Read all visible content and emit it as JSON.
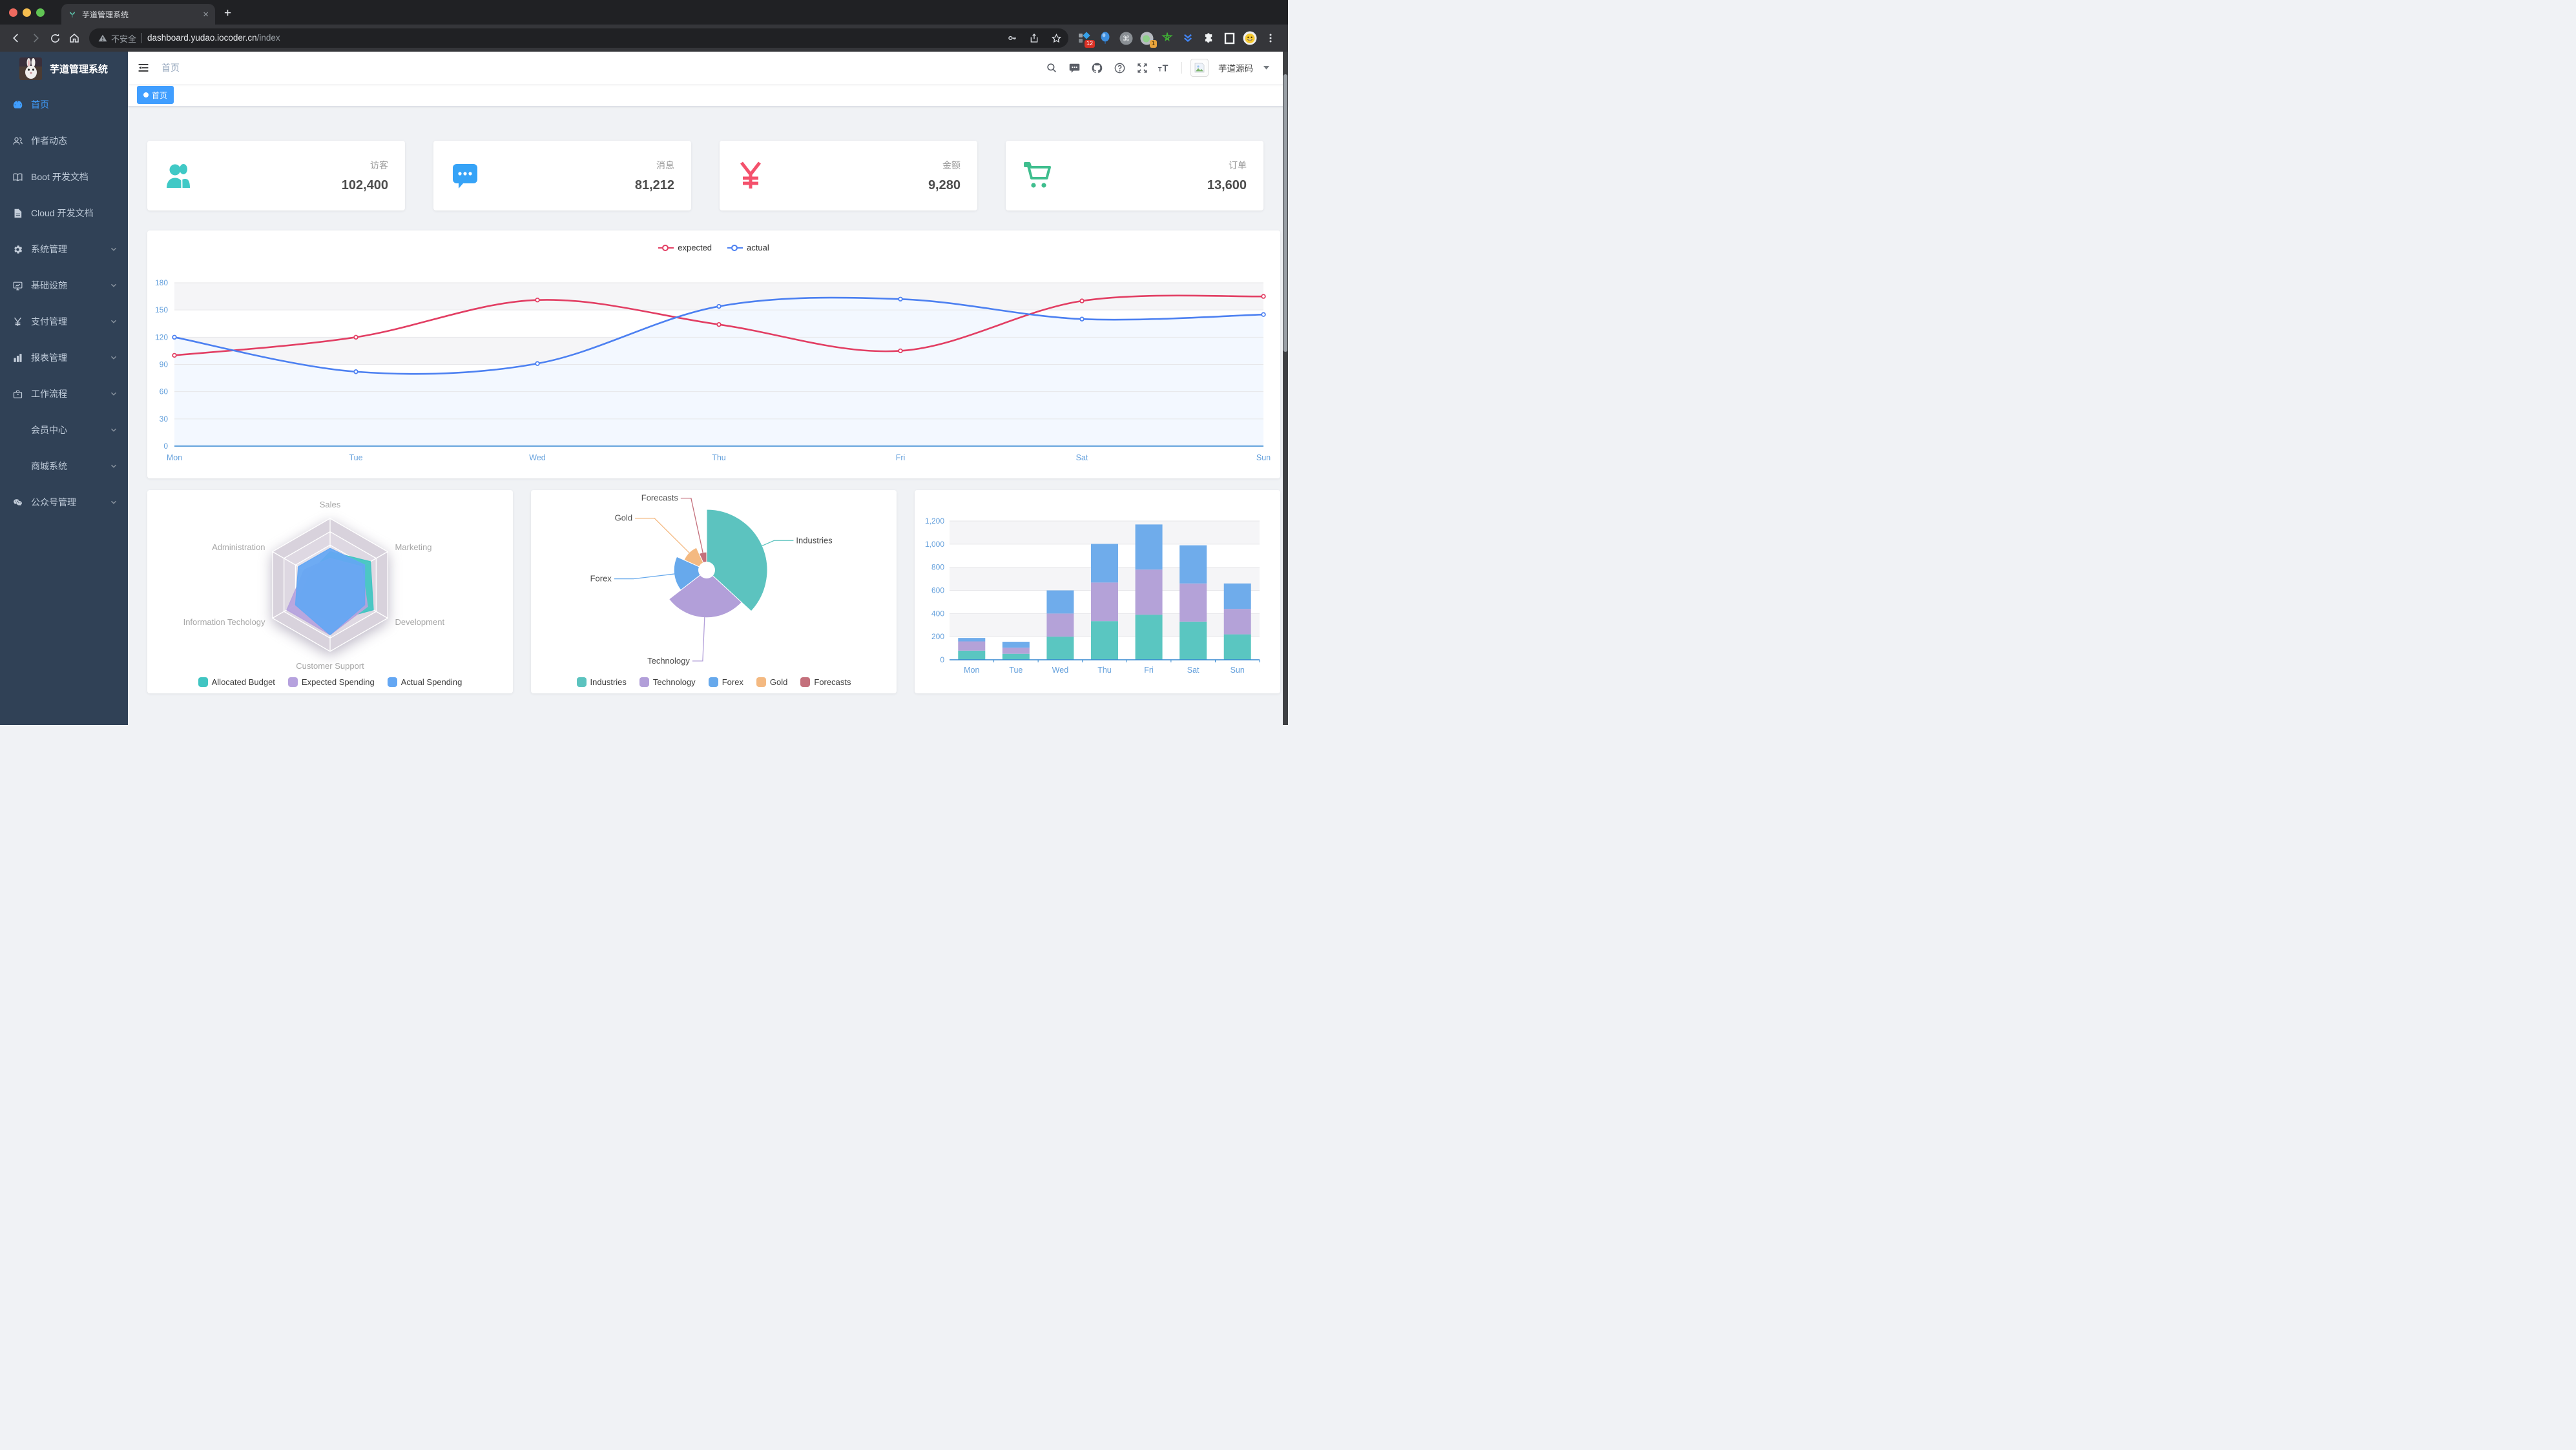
{
  "browser": {
    "tab_title": "芋道管理系统",
    "close_glyph": "×",
    "new_tab_glyph": "+",
    "url_security": "不安全",
    "url_host": "dashboard.yudao.iocoder.cn",
    "url_path": "/index",
    "ext_badge_12": "12",
    "ext_badge_1": "1"
  },
  "sidebar": {
    "title": "芋道管理系统",
    "items": [
      {
        "label": "首页",
        "active": true
      },
      {
        "label": "作者动态"
      },
      {
        "label": "Boot 开发文档"
      },
      {
        "label": "Cloud 开发文档"
      },
      {
        "label": "系统管理"
      },
      {
        "label": "基础设施"
      },
      {
        "label": "支付管理"
      },
      {
        "label": "报表管理"
      },
      {
        "label": "工作流程"
      },
      {
        "label": "会员中心"
      },
      {
        "label": "商城系统"
      },
      {
        "label": "公众号管理"
      }
    ]
  },
  "navbar": {
    "breadcrumb": "首页",
    "username": "芋道源码"
  },
  "tags": {
    "active": "首页"
  },
  "stats": {
    "cards": [
      {
        "label": "访客",
        "value": "102,400",
        "color": "#40c9c6"
      },
      {
        "label": "消息",
        "value": "81,212",
        "color": "#36a3f7"
      },
      {
        "label": "金额",
        "value": "9,280",
        "color": "#f4516c"
      },
      {
        "label": "订单",
        "value": "13,600",
        "color": "#3fbe8e"
      }
    ]
  },
  "chart_data": [
    {
      "id": "line",
      "type": "line",
      "x": [
        "Mon",
        "Tue",
        "Wed",
        "Thu",
        "Fri",
        "Sat",
        "Sun"
      ],
      "ylim": [
        0,
        180
      ],
      "ytick": 30,
      "legend_position": "top",
      "grid": true,
      "series": [
        {
          "name": "expected",
          "color": "#E23E63",
          "values": [
            100,
            120,
            161,
            134,
            105,
            160,
            165
          ]
        },
        {
          "name": "actual",
          "color": "#4C80F1",
          "values": [
            120,
            82,
            91,
            154,
            162,
            140,
            145
          ],
          "area": "#f3f8ff"
        }
      ]
    },
    {
      "id": "radar",
      "type": "radar",
      "indicators": [
        {
          "name": "Sales",
          "max": 10000
        },
        {
          "name": "Administration",
          "max": 20000
        },
        {
          "name": "Information Techology",
          "max": 20000
        },
        {
          "name": "Customer Support",
          "max": 20000
        },
        {
          "name": "Development",
          "max": 20000
        },
        {
          "name": "Marketing",
          "max": 20000
        }
      ],
      "legend_position": "bottom",
      "series": [
        {
          "name": "Allocated Budget",
          "color": "#41C5C2",
          "values": [
            5000,
            7000,
            12000,
            11000,
            15000,
            14000
          ]
        },
        {
          "name": "Expected Spending",
          "color": "#B6A2DE",
          "values": [
            4000,
            9000,
            15000,
            15000,
            13000,
            11000
          ]
        },
        {
          "name": "Actual Spending",
          "color": "#64A7F3",
          "values": [
            5500,
            11000,
            12000,
            15000,
            12000,
            12000
          ]
        }
      ]
    },
    {
      "id": "pie",
      "type": "pie",
      "rose": true,
      "legend_position": "bottom",
      "data": [
        {
          "name": "Industries",
          "value": 320,
          "color": "#5CC3BF"
        },
        {
          "name": "Technology",
          "value": 240,
          "color": "#B29FD9"
        },
        {
          "name": "Forex",
          "value": 149,
          "color": "#67A9EC"
        },
        {
          "name": "Gold",
          "value": 100,
          "color": "#F4B981"
        },
        {
          "name": "Forecasts",
          "value": 59,
          "color": "#C4707C"
        }
      ]
    },
    {
      "id": "bar",
      "type": "bar",
      "stacked": true,
      "categories": [
        "Mon",
        "Tue",
        "Wed",
        "Thu",
        "Fri",
        "Sat",
        "Sun"
      ],
      "ylim": [
        0,
        1200
      ],
      "ytick": 200,
      "series": [
        {
          "color": "#5AC6C1",
          "values": [
            79,
            52,
            200,
            334,
            390,
            330,
            220
          ]
        },
        {
          "color": "#B4A2D8",
          "values": [
            80,
            52,
            200,
            334,
            390,
            330,
            220
          ]
        },
        {
          "color": "#6FACEB",
          "values": [
            30,
            52,
            200,
            334,
            390,
            330,
            220
          ]
        }
      ]
    }
  ]
}
